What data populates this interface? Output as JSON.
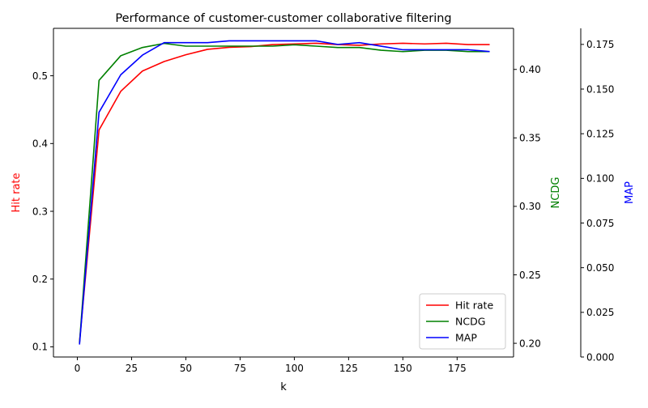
{
  "chart_data": {
    "type": "line",
    "title": "Performance of customer-customer collaborative filtering",
    "xlabel": "k",
    "x": [
      1,
      10,
      20,
      30,
      40,
      50,
      60,
      70,
      80,
      90,
      100,
      110,
      120,
      130,
      140,
      150,
      160,
      170,
      180,
      190
    ],
    "x_ticks": [
      0,
      25,
      50,
      75,
      100,
      125,
      150,
      175
    ],
    "xlim": [
      -11,
      201
    ],
    "axes": [
      {
        "id": "hit_rate",
        "label": "Hit rate",
        "side": "left",
        "color": "#ff0000",
        "ylim": [
          0.085,
          0.57
        ],
        "ticks": [
          0.1,
          0.2,
          0.3,
          0.4,
          0.5
        ],
        "tick_labels": [
          "0.1",
          "0.2",
          "0.3",
          "0.4",
          "0.5"
        ]
      },
      {
        "id": "ncdg",
        "label": "NCDG",
        "side": "right",
        "color": "#008000",
        "ylim": [
          0.19,
          0.43
        ],
        "ticks": [
          0.2,
          0.25,
          0.3,
          0.35,
          0.4
        ],
        "tick_labels": [
          "0.20",
          "0.25",
          "0.30",
          "0.35",
          "0.40"
        ]
      },
      {
        "id": "map",
        "label": "MAP",
        "side": "right-outer",
        "color": "#0000ff",
        "ylim": [
          0.0,
          0.184
        ],
        "ticks": [
          0.0,
          0.025,
          0.05,
          0.075,
          0.1,
          0.125,
          0.15,
          0.175
        ],
        "tick_labels": [
          "0.000",
          "0.025",
          "0.050",
          "0.075",
          "0.100",
          "0.125",
          "0.150",
          "0.175"
        ]
      }
    ],
    "series": [
      {
        "name": "Hit rate",
        "axis": "hit_rate",
        "color": "#ff0000",
        "values": [
          0.107,
          0.42,
          0.477,
          0.507,
          0.521,
          0.531,
          0.539,
          0.542,
          0.543,
          0.546,
          0.547,
          0.548,
          0.546,
          0.545,
          0.547,
          0.548,
          0.547,
          0.548,
          0.546,
          0.546
        ]
      },
      {
        "name": "NCDG",
        "axis": "ncdg",
        "color": "#008000",
        "values": [
          0.2,
          0.392,
          0.41,
          0.416,
          0.419,
          0.417,
          0.417,
          0.417,
          0.417,
          0.417,
          0.418,
          0.417,
          0.416,
          0.416,
          0.414,
          0.413,
          0.414,
          0.414,
          0.413,
          0.413
        ]
      },
      {
        "name": "MAP",
        "axis": "map",
        "color": "#0000ff",
        "values": [
          0.007,
          0.137,
          0.158,
          0.169,
          0.176,
          0.176,
          0.176,
          0.177,
          0.177,
          0.177,
          0.177,
          0.177,
          0.175,
          0.176,
          0.174,
          0.172,
          0.172,
          0.172,
          0.172,
          0.171
        ]
      }
    ],
    "legend": {
      "placement": "lower-right",
      "entries": [
        "Hit rate",
        "NCDG",
        "MAP"
      ]
    },
    "grid": false
  }
}
